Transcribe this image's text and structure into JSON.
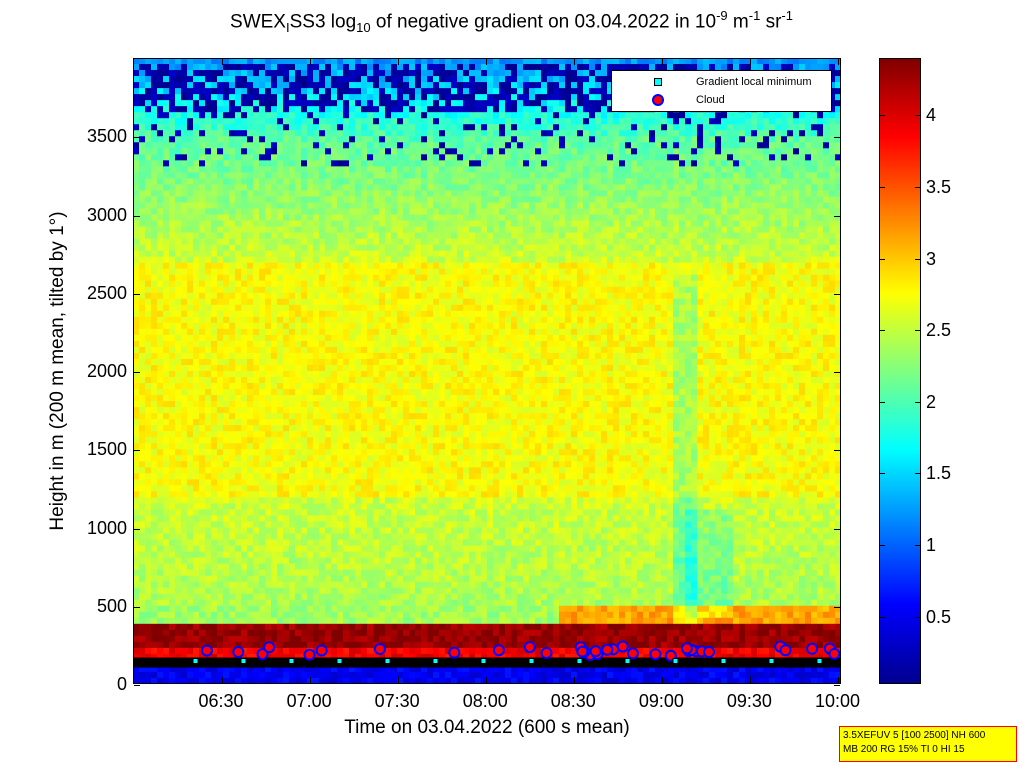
{
  "chart_data": {
    "type": "heatmap",
    "title_parts": {
      "a": "SWEX",
      "a_sub": "I",
      "b": "SS3 log",
      "b_sub": "10",
      "c": " of negative gradient on 03.04.2022 in 10",
      "c_sup": "-9",
      "d": " m",
      "d_sup": "-1",
      "e": " sr",
      "e_sup": "-1"
    },
    "xlabel": "Time on 03.04.2022 (600 s mean)",
    "ylabel": "Height in m (200 m mean, tilted by 1°)",
    "x_ticks": [
      "06:30",
      "07:00",
      "07:30",
      "08:00",
      "08:30",
      "09:00",
      "09:30",
      "10:00"
    ],
    "x_tick_hours": [
      6.5,
      7.0,
      7.5,
      8.0,
      8.5,
      9.0,
      9.5,
      10.0
    ],
    "xlim_hours": [
      6.0,
      10.02
    ],
    "y_ticks": [
      "0",
      "500",
      "1000",
      "1500",
      "2000",
      "2500",
      "3000",
      "3500"
    ],
    "y_tick_values": [
      0,
      500,
      1000,
      1500,
      2000,
      2500,
      3000,
      3500
    ],
    "ylim": [
      0,
      4000
    ],
    "colorbar": {
      "ticks": [
        "0.5",
        "1",
        "1.5",
        "2",
        "2.5",
        "3",
        "3.5",
        "4"
      ],
      "tick_values": [
        0.5,
        1,
        1.5,
        2,
        2.5,
        3,
        3.5,
        4
      ],
      "range": [
        0.03,
        4.4
      ],
      "colors": [
        "#00008f",
        "#0000ff",
        "#00ffff",
        "#ffff00",
        "#ff0000",
        "#800000"
      ]
    },
    "layers": [
      {
        "height_range": [
          2700,
          4000
        ],
        "description_value": "blue patches near top",
        "level": 0.1
      },
      {
        "height_range": [
          400,
          3500
        ],
        "level": 2.7
      },
      {
        "height_range": [
          150,
          380
        ],
        "level": 4.2
      }
    ],
    "legend": [
      {
        "label": "Gradient local minimum",
        "marker": "square",
        "color": "#00ffff"
      },
      {
        "label": "Cloud",
        "marker": "circle",
        "color": "#ff0000"
      }
    ],
    "legend_position": "top-right",
    "info_box": {
      "line1": "3.5XEFUV 5 [100 2500] NH 600",
      "line2": "MB 200 RG 15% TI 0 HI 15"
    }
  }
}
